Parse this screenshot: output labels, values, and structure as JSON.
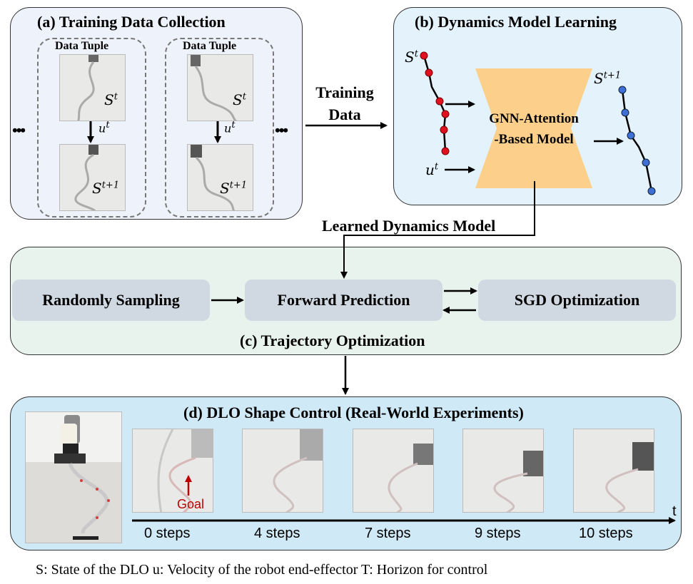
{
  "panel_a": {
    "title": "(a) Training Data Collection",
    "tuple_label": "Data Tuple",
    "state_t": "S",
    "state_t_sup": "t",
    "action": "u",
    "action_sup": "t",
    "state_next": "S",
    "state_next_sup": "t+1",
    "ellipsis": "•••"
  },
  "training_data": {
    "line1": "Training",
    "line2": "Data"
  },
  "panel_b": {
    "title": "(b) Dynamics Model Learning",
    "model_line1": "GNN-Attention",
    "model_line2": "-Based Model",
    "input_state": "S",
    "input_state_sup": "t",
    "input_action": "u",
    "input_action_sup": "t",
    "output_state": "S",
    "output_state_sup": "t+1"
  },
  "learned_model_label": "Learned Dynamics Model",
  "panel_c": {
    "title": "(c) Trajectory Optimization",
    "box1": "Randomly Sampling",
    "box2": "Forward Prediction",
    "box3": "SGD Optimization"
  },
  "panel_d": {
    "title": "(d) DLO Shape Control (Real-World Experiments)",
    "goal_label": "Goal",
    "time_axis_label": "t",
    "steps": [
      "0 steps",
      "4 steps",
      "7 steps",
      "9 steps",
      "10 steps"
    ]
  },
  "legend": "S: State of the DLO  u: Velocity of the robot end-effector  T: Horizon for control",
  "colors": {
    "red_node": "#e01020",
    "blue_node": "#3d6fd6",
    "model_fill": "#fcd08a",
    "goal": "#c00000"
  }
}
